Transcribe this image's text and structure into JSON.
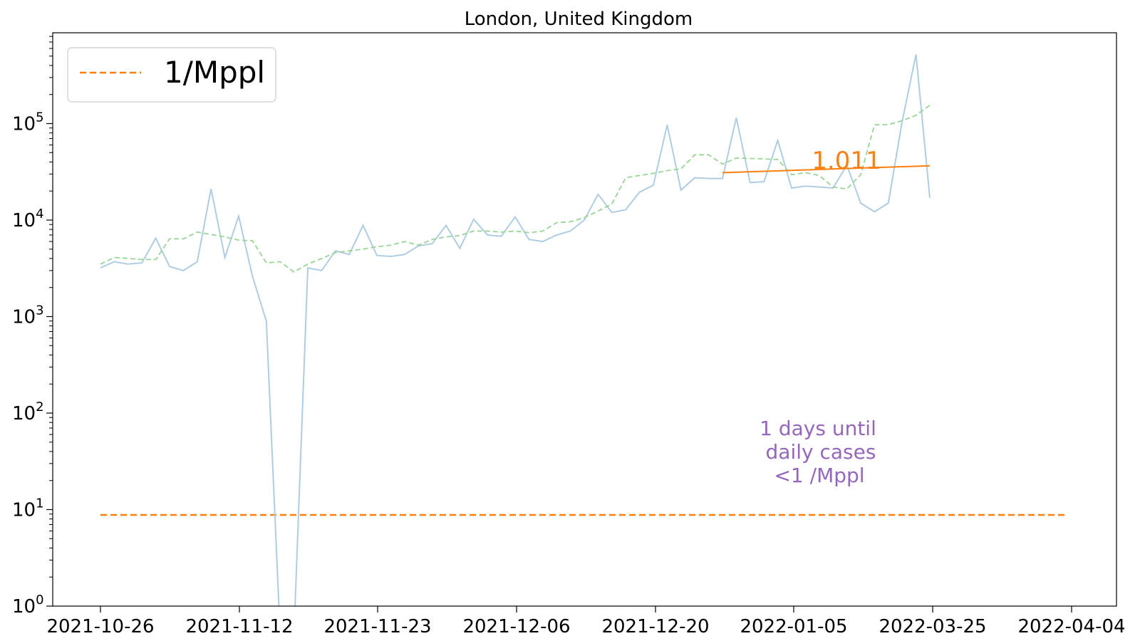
{
  "chart_data": {
    "type": "line",
    "title": "London, United Kingdom",
    "xlabel": "",
    "ylabel": "",
    "y_scale": "log",
    "ylim": [
      1,
      900000
    ],
    "grid": false,
    "legend_position": "top-left",
    "x_ticks": [
      "2021-10-26",
      "2021-11-12",
      "2021-11-23",
      "2021-12-06",
      "2021-12-20",
      "2022-01-05",
      "2022-03-25",
      "2022-04-04"
    ],
    "y_ticks": [
      {
        "base": "10",
        "exp": "0"
      },
      {
        "base": "10",
        "exp": "1"
      },
      {
        "base": "10",
        "exp": "2"
      },
      {
        "base": "10",
        "exp": "3"
      },
      {
        "base": "10",
        "exp": "4"
      },
      {
        "base": "10",
        "exp": "5"
      }
    ],
    "legend": [
      {
        "label": "1/Mppl",
        "color": "#ff7f0e",
        "style": "dashed"
      }
    ],
    "series": [
      {
        "key": "daily",
        "color": "#aecde3",
        "style": "solid",
        "x": [
          0,
          1,
          2,
          3,
          4,
          5,
          6,
          7,
          8,
          9,
          10,
          11,
          12,
          13,
          14,
          15,
          16,
          17,
          18,
          19,
          20,
          21,
          22,
          23,
          24,
          25,
          26,
          27,
          28,
          29,
          30,
          31,
          32,
          33,
          34,
          35,
          36,
          37,
          38,
          39,
          40,
          41,
          42,
          43,
          44,
          45,
          46,
          47,
          48,
          49,
          50,
          51,
          52,
          53,
          54,
          55,
          56,
          57,
          58,
          59,
          60,
          61,
          62
        ],
        "values": [
          3200,
          3700,
          3500,
          3600,
          6500,
          3300,
          3000,
          3700,
          21000,
          4100,
          11000,
          2600,
          900,
          0.5,
          0.5,
          3200,
          3000,
          4800,
          4400,
          8800,
          4300,
          4200,
          4400,
          5400,
          5700,
          8800,
          5100,
          10200,
          7000,
          6800,
          10800,
          6300,
          6000,
          7000,
          7700,
          10000,
          18500,
          12000,
          12800,
          19500,
          23000,
          97000,
          20500,
          27500,
          27000,
          27000,
          115000,
          24500,
          25000,
          67000,
          21500,
          22500,
          22000,
          21500,
          37000,
          15000,
          12200,
          15000,
          105000,
          520000,
          17000,
          null,
          null
        ],
        "note_zero_days": "days 13-14 drop below axis minimum"
      },
      {
        "key": "rolling-average",
        "color": "#98d596",
        "style": "dashed",
        "x": [
          0,
          1,
          2,
          3,
          4,
          5,
          6,
          7,
          8,
          9,
          10,
          11,
          12,
          13,
          14,
          15,
          16,
          17,
          18,
          19,
          20,
          21,
          22,
          23,
          24,
          25,
          26,
          27,
          28,
          29,
          30,
          31,
          32,
          33,
          34,
          35,
          36,
          37,
          38,
          39,
          40,
          41,
          42,
          43,
          44,
          45,
          46,
          47,
          48,
          49,
          50,
          51,
          52,
          53,
          54,
          55,
          56,
          57,
          58,
          59,
          60
        ],
        "values": [
          3500,
          4100,
          4000,
          3900,
          3900,
          6400,
          6400,
          7500,
          7100,
          6700,
          6200,
          6100,
          3600,
          3700,
          2900,
          3500,
          4000,
          4600,
          4800,
          5000,
          5300,
          5500,
          6000,
          5500,
          6300,
          6700,
          6900,
          7700,
          7700,
          7500,
          7700,
          7400,
          7700,
          9400,
          9600,
          10600,
          12400,
          14700,
          27500,
          29000,
          30500,
          32500,
          34000,
          47500,
          47500,
          38000,
          44000,
          43500,
          43000,
          42500,
          29500,
          31000,
          29000,
          22000,
          21000,
          29500,
          97000,
          97500,
          107000,
          122000,
          155000
        ]
      }
    ],
    "fit_line": {
      "label": "1.011",
      "color": "#ff7f0e",
      "x": [
        45,
        60
      ],
      "values": [
        31000,
        36500
      ]
    },
    "threshold_line": {
      "color": "#ff7f0e",
      "style": "dashed",
      "y": 8.8,
      "x": [
        0,
        70
      ]
    },
    "annotation": {
      "lines": [
        "1 days until",
        "daily cases",
        "<1 /Mppl"
      ],
      "color": "#9467bd"
    }
  }
}
